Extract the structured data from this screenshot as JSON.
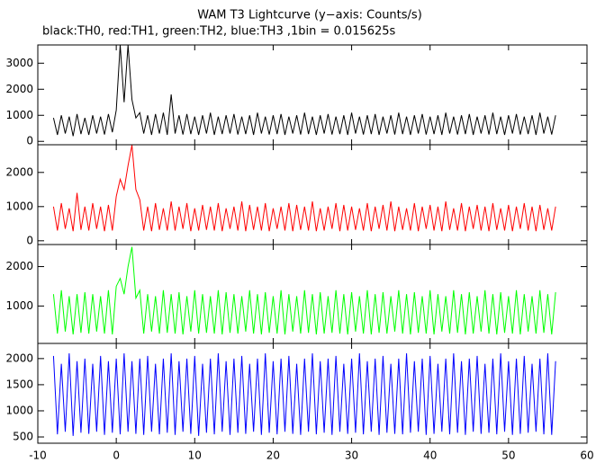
{
  "chart_data": {
    "type": "line",
    "title": "WAM T3 Lightcurve (y−axis: Counts/s)",
    "subtitle": "black:TH0, red:TH1, green:TH2, blue:TH3 ,1bin = 0.015625s",
    "xlim": [
      -10,
      60
    ],
    "xticks": [
      -10,
      0,
      10,
      20,
      30,
      40,
      50,
      60
    ],
    "x": [
      -8,
      -7.5,
      -7,
      -6.5,
      -6,
      -5.5,
      -5,
      -4.5,
      -4,
      -3.5,
      -3,
      -2.5,
      -2,
      -1.5,
      -1,
      -0.5,
      0,
      0.5,
      1,
      1.5,
      2,
      2.5,
      3,
      3.5,
      4,
      4.5,
      5,
      5.5,
      6,
      6.5,
      7,
      7.5,
      8,
      8.5,
      9,
      9.5,
      10,
      10.5,
      11,
      11.5,
      12,
      12.5,
      13,
      13.5,
      14,
      14.5,
      15,
      15.5,
      16,
      16.5,
      17,
      17.5,
      18,
      18.5,
      19,
      19.5,
      20,
      20.5,
      21,
      21.5,
      22,
      22.5,
      23,
      23.5,
      24,
      24.5,
      25,
      25.5,
      26,
      26.5,
      27,
      27.5,
      28,
      28.5,
      29,
      29.5,
      30,
      30.5,
      31,
      31.5,
      32,
      32.5,
      33,
      33.5,
      34,
      34.5,
      35,
      35.5,
      36,
      36.5,
      37,
      37.5,
      38,
      38.5,
      39,
      39.5,
      40,
      40.5,
      41,
      41.5,
      42,
      42.5,
      43,
      43.5,
      44,
      44.5,
      45,
      45.5,
      46,
      46.5,
      47,
      47.5,
      48,
      48.5,
      49,
      49.5,
      50,
      50.5,
      51,
      51.5,
      52,
      52.5,
      53,
      53.5,
      54,
      54.5,
      55,
      55.5,
      56
    ],
    "panels": [
      {
        "ylim": [
          -130,
          3700
        ],
        "yticks": [
          0,
          1000,
          2000,
          3000
        ],
        "series": [
          {
            "color": "#000000",
            "values": [
              900,
              250,
              1000,
              300,
              950,
              200,
              1050,
              280,
              900,
              250,
              1000,
              300,
              950,
              260,
              1050,
              350,
              1200,
              3700,
              1500,
              3700,
              1600,
              900,
              1100,
              300,
              1000,
              250,
              1050,
              300,
              1100,
              250,
              1800,
              300,
              1000,
              260,
              1050,
              280,
              950,
              250,
              1000,
              300,
              1100,
              250,
              950,
              280,
              1000,
              300,
              1050,
              260,
              950,
              280,
              1000,
              250,
              1100,
              300,
              950,
              260,
              1000,
              280,
              1050,
              250,
              950,
              300,
              1000,
              260,
              1100,
              280,
              950,
              250,
              1000,
              300,
              1050,
              260,
              950,
              280,
              1000,
              250,
              1100,
              300,
              950,
              260,
              1000,
              280,
              1050,
              250,
              950,
              300,
              1000,
              260,
              1100,
              280,
              950,
              250,
              1000,
              300,
              1050,
              260,
              950,
              280,
              1000,
              250,
              1100,
              300,
              950,
              260,
              1000,
              280,
              1050,
              250,
              950,
              300,
              1000,
              260,
              1100,
              280,
              950,
              250,
              1000,
              300,
              1050,
              260,
              950,
              280,
              1000,
              250,
              1100,
              300,
              950,
              260,
              1000
            ]
          }
        ]
      },
      {
        "ylim": [
          -110,
          2810
        ],
        "yticks": [
          0,
          1000,
          2000
        ],
        "series": [
          {
            "color": "#ff0000",
            "values": [
              1000,
              300,
              1100,
              350,
              950,
              280,
              1400,
              320,
              1000,
              300,
              1100,
              350,
              1000,
              280,
              1050,
              300,
              1300,
              1800,
              1500,
              2200,
              2800,
              1500,
              1200,
              300,
              1000,
              280,
              1100,
              320,
              950,
              300,
              1150,
              300,
              1000,
              350,
              1100,
              280,
              950,
              300,
              1050,
              320,
              1000,
              300,
              1100,
              280,
              950,
              350,
              1000,
              300,
              1150,
              280,
              1050,
              320,
              1000,
              300,
              1100,
              280,
              950,
              350,
              1000,
              300,
              1100,
              280,
              1050,
              320,
              1000,
              300,
              1150,
              280,
              950,
              300,
              1000,
              350,
              1100,
              280,
              1050,
              300,
              1000,
              320,
              950,
              300,
              1100,
              280,
              1000,
              350,
              1050,
              300,
              1150,
              280,
              1000,
              320,
              950,
              300,
              1100,
              280,
              1000,
              350,
              1050,
              300,
              1000,
              280,
              1150,
              320,
              950,
              300,
              1100,
              280,
              1000,
              350,
              1050,
              300,
              1000,
              280,
              1100,
              320,
              950,
              300,
              1050,
              280,
              1000,
              350,
              1100,
              300,
              1000,
              280,
              1050,
              320,
              950,
              300,
              1000
            ]
          }
        ]
      },
      {
        "ylim": [
          50,
          2560
        ],
        "yticks": [
          1000,
          2000
        ],
        "series": [
          {
            "color": "#00ff00",
            "values": [
              1300,
              300,
              1400,
              350,
              1250,
              280,
              1300,
              320,
              1350,
              300,
              1300,
              350,
              1250,
              300,
              1400,
              280,
              1500,
              1700,
              1300,
              2000,
              2500,
              1200,
              1400,
              300,
              1300,
              350,
              1250,
              300,
              1400,
              320,
              1300,
              300,
              1350,
              280,
              1250,
              350,
              1400,
              300,
              1300,
              320,
              1250,
              300,
              1400,
              280,
              1350,
              320,
              1300,
              300,
              1250,
              350,
              1400,
              300,
              1300,
              280,
              1350,
              320,
              1250,
              300,
              1400,
              280,
              1300,
              350,
              1250,
              300,
              1400,
              320,
              1300,
              280,
              1350,
              300,
              1250,
              320,
              1400,
              300,
              1300,
              280,
              1350,
              350,
              1250,
              300,
              1400,
              280,
              1300,
              320,
              1350,
              300,
              1250,
              350,
              1400,
              300,
              1300,
              280,
              1350,
              320,
              1250,
              300,
              1400,
              280,
              1300,
              350,
              1250,
              300,
              1400,
              320,
              1300,
              280,
              1350,
              300,
              1250,
              350,
              1400,
              300,
              1300,
              280,
              1350,
              320,
              1250,
              300,
              1400,
              280,
              1300,
              350,
              1250,
              300,
              1400,
              320,
              1300,
              280,
              1350
            ]
          }
        ]
      },
      {
        "ylim": [
          380,
          2290
        ],
        "yticks": [
          500,
          1000,
          1500,
          2000
        ],
        "series": [
          {
            "color": "#0000ff",
            "values": [
              2050,
              550,
              1900,
              600,
              2100,
              520,
              1950,
              580,
              2000,
              560,
              1900,
              600,
              2050,
              540,
              1950,
              580,
              2000,
              550,
              2100,
              600,
              1950,
              560,
              2000,
              540,
              2050,
              600,
              1900,
              550,
              2000,
              580,
              2100,
              540,
              1950,
              600,
              2000,
              560,
              2050,
              520,
              1900,
              580,
              2000,
              550,
              2100,
              600,
              1950,
              540,
              2000,
              580,
              2050,
              560,
              1900,
              600,
              2000,
              540,
              2100,
              580,
              1950,
              550,
              2000,
              600,
              2050,
              560,
              1900,
              540,
              2000,
              600,
              2100,
              550,
              1950,
              580,
              2000,
              540,
              2050,
              600,
              1900,
              560,
              2000,
              580,
              2100,
              550,
              1950,
              600,
              2000,
              540,
              2050,
              580,
              1900,
              560,
              2000,
              550,
              2100,
              580,
              1950,
              600,
              2000,
              540,
              2050,
              560,
              1900,
              600,
              2000,
              550,
              2100,
              580,
              1950,
              540,
              2000,
              600,
              2050,
              560,
              1900,
              580,
              2000,
              550,
              2100,
              600,
              1950,
              540,
              2000,
              560,
              2050,
              580,
              1900,
              600,
              2000,
              550,
              2100,
              540,
              1950
            ]
          }
        ]
      }
    ]
  }
}
